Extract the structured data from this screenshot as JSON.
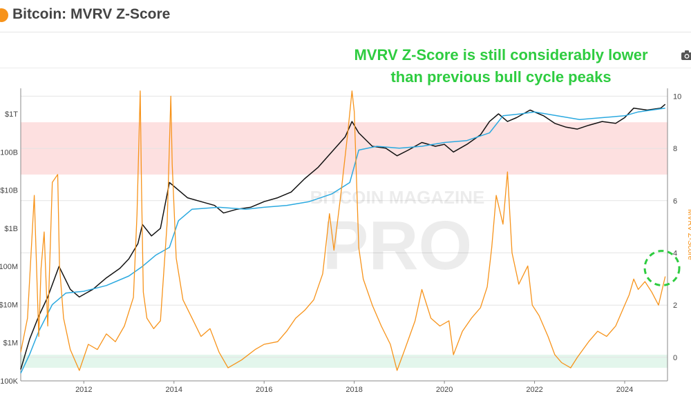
{
  "header": {
    "title": "Bitcoin: MVRV Z-Score"
  },
  "annotation": {
    "line1": "MVRV Z-Score is still considerably lower",
    "line2": "than previous bull cycle peaks"
  },
  "watermark": {
    "top": "BITCOIN MAGAZINE",
    "bottom": "PRO"
  },
  "toolbar": {
    "camera_icon": "camera-icon"
  },
  "colors": {
    "price": "#111111",
    "realized": "#2aa9e0",
    "zscore": "#f7931a",
    "red_zone": "#fde0e0",
    "green_zone": "#e3f6ec",
    "annotation": "#2ecc40"
  },
  "chart_data": {
    "type": "line",
    "title": "",
    "xlabel": "",
    "ylabel_left": "",
    "ylabel_right": "MVRV Z-Score",
    "x_ticks": [
      "2012",
      "2014",
      "2016",
      "2018",
      "2020",
      "2022",
      "2024"
    ],
    "x_range": [
      2010.6,
      2024.95
    ],
    "y_left_ticks": [
      "100K",
      "$1M",
      "$10M",
      "100M",
      "$1B",
      "$10B",
      "100B",
      "$1T"
    ],
    "y_left_log_range": [
      5,
      12
    ],
    "y_right_ticks": [
      "0",
      "2",
      "4",
      "6",
      "8",
      "10"
    ],
    "y_right_range": [
      -0.9,
      10.3
    ],
    "red_zone": [
      7,
      9
    ],
    "green_zone": [
      -0.4,
      0.1
    ],
    "series": [
      {
        "name": "",
        "axis": "left",
        "x": [
          2010.6,
          2010.8,
          2011.0,
          2011.2,
          2011.45,
          2011.7,
          2011.9,
          2012.2,
          2012.5,
          2012.8,
          2013.0,
          2013.2,
          2013.3,
          2013.5,
          2013.7,
          2013.9,
          2014.0,
          2014.3,
          2014.6,
          2014.9,
          2015.1,
          2015.4,
          2015.7,
          2016.0,
          2016.3,
          2016.6,
          2016.9,
          2017.2,
          2017.5,
          2017.8,
          2017.95,
          2018.1,
          2018.4,
          2018.7,
          2018.95,
          2019.2,
          2019.5,
          2019.8,
          2020.0,
          2020.2,
          2020.5,
          2020.8,
          2021.0,
          2021.2,
          2021.4,
          2021.6,
          2021.9,
          2022.2,
          2022.45,
          2022.7,
          2022.95,
          2023.2,
          2023.5,
          2023.8,
          2024.0,
          2024.2,
          2024.5,
          2024.8,
          2024.9
        ],
        "y": [
          5.3,
          6.1,
          6.7,
          7.2,
          8.0,
          7.4,
          7.2,
          7.4,
          7.7,
          7.95,
          8.2,
          8.6,
          9.1,
          8.8,
          9.0,
          10.2,
          10.1,
          9.8,
          9.7,
          9.6,
          9.4,
          9.5,
          9.55,
          9.7,
          9.8,
          9.95,
          10.3,
          10.6,
          11.0,
          11.4,
          11.8,
          11.5,
          11.15,
          11.1,
          10.9,
          11.05,
          11.25,
          11.15,
          11.2,
          11.0,
          11.2,
          11.45,
          11.8,
          12.0,
          11.8,
          11.9,
          12.1,
          11.95,
          11.75,
          11.65,
          11.6,
          11.7,
          11.8,
          11.75,
          11.9,
          12.15,
          12.1,
          12.15,
          12.25
        ]
      },
      {
        "name": "",
        "axis": "left",
        "x": [
          2010.6,
          2010.8,
          2011.0,
          2011.3,
          2011.6,
          2012.0,
          2012.5,
          2013.0,
          2013.3,
          2013.6,
          2013.9,
          2014.1,
          2014.4,
          2015.0,
          2015.6,
          2016.0,
          2016.5,
          2017.0,
          2017.5,
          2017.9,
          2018.1,
          2018.5,
          2019.0,
          2019.5,
          2020.0,
          2020.5,
          2021.0,
          2021.3,
          2021.7,
          2022.0,
          2022.5,
          2023.0,
          2023.5,
          2024.0,
          2024.3,
          2024.6,
          2024.9
        ],
        "y": [
          5.2,
          5.7,
          6.3,
          7.0,
          7.3,
          7.35,
          7.5,
          7.75,
          8.0,
          8.3,
          8.5,
          9.2,
          9.5,
          9.55,
          9.5,
          9.55,
          9.6,
          9.7,
          9.9,
          10.2,
          11.05,
          11.15,
          11.1,
          11.15,
          11.25,
          11.3,
          11.5,
          11.95,
          12.0,
          12.05,
          11.95,
          11.85,
          11.9,
          11.95,
          12.05,
          12.1,
          12.15
        ]
      },
      {
        "name": "MVRV Z-Score",
        "axis": "right",
        "x": [
          2010.6,
          2010.75,
          2010.9,
          2011.0,
          2011.05,
          2011.12,
          2011.2,
          2011.3,
          2011.42,
          2011.46,
          2011.55,
          2011.7,
          2011.9,
          2012.1,
          2012.3,
          2012.5,
          2012.7,
          2012.9,
          2013.1,
          2013.18,
          2013.25,
          2013.28,
          2013.32,
          2013.4,
          2013.55,
          2013.7,
          2013.85,
          2013.93,
          2013.96,
          2014.05,
          2014.2,
          2014.4,
          2014.6,
          2014.8,
          2015.0,
          2015.2,
          2015.5,
          2015.8,
          2016.0,
          2016.3,
          2016.5,
          2016.7,
          2016.9,
          2017.1,
          2017.3,
          2017.45,
          2017.55,
          2017.7,
          2017.85,
          2017.95,
          2018.0,
          2018.1,
          2018.2,
          2018.4,
          2018.6,
          2018.8,
          2018.95,
          2019.1,
          2019.35,
          2019.5,
          2019.7,
          2019.9,
          2020.1,
          2020.2,
          2020.4,
          2020.6,
          2020.8,
          2020.95,
          2021.05,
          2021.15,
          2021.3,
          2021.4,
          2021.5,
          2021.65,
          2021.85,
          2021.95,
          2022.1,
          2022.3,
          2022.45,
          2022.6,
          2022.8,
          2022.95,
          2023.2,
          2023.4,
          2023.6,
          2023.8,
          2024.0,
          2024.1,
          2024.2,
          2024.3,
          2024.45,
          2024.6,
          2024.75,
          2024.9
        ],
        "y": [
          0.2,
          1.5,
          6.2,
          0.8,
          3.4,
          4.8,
          1.2,
          6.7,
          7.0,
          3.5,
          1.5,
          0.3,
          -0.5,
          0.5,
          0.3,
          0.9,
          0.6,
          1.2,
          2.3,
          5.5,
          10.2,
          6.5,
          2.5,
          1.5,
          1.1,
          1.4,
          5.2,
          10.0,
          7.4,
          3.8,
          2.2,
          1.5,
          0.8,
          1.1,
          0.2,
          -0.4,
          -0.1,
          0.3,
          0.5,
          0.6,
          1.0,
          1.5,
          1.8,
          2.2,
          3.2,
          5.5,
          4.1,
          6.2,
          8.5,
          10.2,
          9.4,
          4.2,
          3.0,
          2.0,
          1.2,
          0.5,
          -0.5,
          0.2,
          1.4,
          2.6,
          1.5,
          1.2,
          1.4,
          0.1,
          1.0,
          1.5,
          1.9,
          2.7,
          4.2,
          6.2,
          5.1,
          7.1,
          4.0,
          2.8,
          3.5,
          2.0,
          1.6,
          0.8,
          0.1,
          -0.2,
          -0.4,
          0.0,
          0.6,
          1.0,
          0.8,
          1.2,
          2.0,
          2.4,
          3.0,
          2.6,
          2.9,
          2.5,
          2.0,
          3.1
        ]
      }
    ],
    "highlight": {
      "x": 2024.92,
      "y": 3.1
    }
  }
}
